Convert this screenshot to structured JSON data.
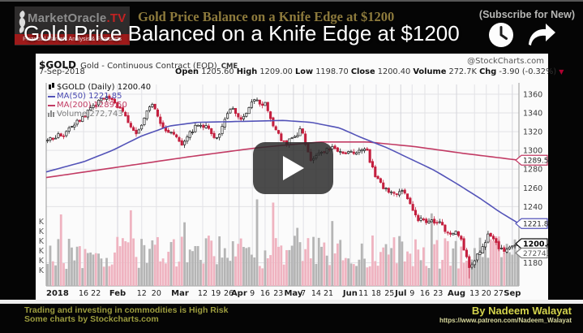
{
  "video": {
    "overlay_title": "Gold Price Balanced on a Knife Edge at $1200",
    "top_title": "Gold Price Balance on a Knife Edge at $1200",
    "subscribe_note": "(Subscribe for New)",
    "logo": {
      "name": "MarketOracle",
      "tld": ".TV",
      "tagline": "Financial Markets Analysis & Forecasts"
    },
    "footer": {
      "left_line1": "Trading and investing in  commodities is High Risk",
      "left_line2": "Some charts by Stockcharts.com",
      "right_byline": "By Nadeem Walayat",
      "right_url": "https://www.patreon.com/Nadeem_Walayat"
    }
  },
  "chart": {
    "symbol": "$GOLD",
    "description": "Gold - Continuous Contract (EOD)",
    "exchange": "CME",
    "source": "@StockCharts.com",
    "date": "7-Sep-2018",
    "quote": {
      "open_label": "Open",
      "open": "1205.60",
      "high_label": "High",
      "high": "1209.00",
      "low_label": "Low",
      "low": "1198.70",
      "close_label": "Close",
      "close": "1200.40",
      "volume_label": "Volume",
      "volume": "272.7K",
      "chg_label": "Chg",
      "chg": "-3.90 (-0.32%)"
    },
    "legend": {
      "price": "$GOLD (Daily) 1200.40",
      "ma50": "MA(50) 1221.85",
      "ma200": "MA(200) 1289.50",
      "volume": "Volume 272,743"
    }
  },
  "chart_data": {
    "type": "candlestick",
    "symbol": "$GOLD (Daily)",
    "timeframe": "Jan 2018 - 7 Sep 2018",
    "ohlc_today": {
      "open": 1205.6,
      "high": 1209.0,
      "low": 1198.7,
      "close": 1200.4,
      "volume_k": 272.7,
      "change": -3.9,
      "change_pct": -0.32
    },
    "ylim": [
      1160,
      1370
    ],
    "y_ticks": [
      1360,
      1340,
      1320,
      1300,
      1280,
      1260,
      1240,
      1180
    ],
    "price_tags": [
      {
        "value": "1289.50",
        "series": "MA(200)",
        "price": 1289.5,
        "color": "#c23b64"
      },
      {
        "value": "1221.85",
        "series": "MA(50)",
        "price": 1221.85,
        "color": "#5353b8"
      },
      {
        "value": "1200.40",
        "series": "close",
        "price": 1200.4,
        "color": "#111111"
      },
      {
        "value": "272743",
        "series": "volume",
        "color": "#808080"
      }
    ],
    "volume_axis_labels": [
      "K",
      "K",
      "K",
      "K",
      "K",
      "K"
    ],
    "x_ticks": [
      [
        "2018",
        0.0,
        1
      ],
      [
        "16",
        0.079,
        0
      ],
      [
        "22",
        0.105,
        0
      ],
      [
        "Feb",
        0.151,
        1
      ],
      [
        "12",
        0.202,
        0
      ],
      [
        "20",
        0.233,
        0
      ],
      [
        "Mar",
        0.283,
        1
      ],
      [
        "12",
        0.331,
        0
      ],
      [
        "19",
        0.359,
        0
      ],
      [
        "26",
        0.386,
        0
      ],
      [
        "Apr",
        0.408,
        1
      ],
      [
        "9",
        0.436,
        0
      ],
      [
        "16",
        0.463,
        0
      ],
      [
        "23",
        0.491,
        0
      ],
      [
        "May",
        0.523,
        1
      ],
      [
        "7",
        0.544,
        0
      ],
      [
        "14",
        0.571,
        0
      ],
      [
        "21",
        0.597,
        0
      ],
      [
        "Jun",
        0.643,
        1
      ],
      [
        "11",
        0.671,
        0
      ],
      [
        "18",
        0.698,
        0
      ],
      [
        "25",
        0.726,
        0
      ],
      [
        "Jul",
        0.75,
        1
      ],
      [
        "9",
        0.774,
        0
      ],
      [
        "16",
        0.801,
        0
      ],
      [
        "23",
        0.829,
        0
      ],
      [
        "Aug",
        0.868,
        1
      ],
      [
        "13",
        0.906,
        0
      ],
      [
        "20",
        0.931,
        0
      ],
      [
        "27",
        0.957,
        0
      ],
      [
        "Sep",
        0.986,
        1
      ]
    ],
    "series": [
      {
        "name": "$GOLD close path",
        "type": "candles",
        "last": 1200.4,
        "anchors": [
          [
            0.0,
            1312
          ],
          [
            0.036,
            1318
          ],
          [
            0.122,
            1358
          ],
          [
            0.156,
            1345
          ],
          [
            0.19,
            1316
          ],
          [
            0.22,
            1352
          ],
          [
            0.24,
            1328
          ],
          [
            0.288,
            1307
          ],
          [
            0.314,
            1326
          ],
          [
            0.34,
            1324
          ],
          [
            0.362,
            1311
          ],
          [
            0.388,
            1346
          ],
          [
            0.413,
            1333
          ],
          [
            0.439,
            1353
          ],
          [
            0.465,
            1349
          ],
          [
            0.482,
            1324
          ],
          [
            0.506,
            1306
          ],
          [
            0.54,
            1322
          ],
          [
            0.559,
            1290
          ],
          [
            0.597,
            1303
          ],
          [
            0.652,
            1296
          ],
          [
            0.678,
            1302
          ],
          [
            0.695,
            1274
          ],
          [
            0.722,
            1256
          ],
          [
            0.743,
            1253
          ],
          [
            0.755,
            1258
          ],
          [
            0.786,
            1227
          ],
          [
            0.808,
            1224
          ],
          [
            0.837,
            1223
          ],
          [
            0.849,
            1213
          ],
          [
            0.877,
            1211
          ],
          [
            0.897,
            1174
          ],
          [
            0.901,
            1178
          ],
          [
            0.926,
            1196
          ],
          [
            0.94,
            1212
          ],
          [
            0.952,
            1200
          ],
          [
            0.974,
            1192
          ],
          [
            1.0,
            1200.4
          ]
        ]
      },
      {
        "name": "MA(50)",
        "type": "line",
        "last": 1221.85,
        "anchors": [
          [
            0.0,
            1277
          ],
          [
            0.08,
            1288
          ],
          [
            0.14,
            1300
          ],
          [
            0.2,
            1315
          ],
          [
            0.26,
            1326
          ],
          [
            0.32,
            1330
          ],
          [
            0.42,
            1331
          ],
          [
            0.5,
            1332
          ],
          [
            0.56,
            1330
          ],
          [
            0.62,
            1324
          ],
          [
            0.67,
            1313
          ],
          [
            0.72,
            1303
          ],
          [
            0.77,
            1291
          ],
          [
            0.82,
            1279
          ],
          [
            0.87,
            1264
          ],
          [
            0.92,
            1248
          ],
          [
            0.96,
            1234
          ],
          [
            1.0,
            1221.85
          ]
        ]
      },
      {
        "name": "MA(200)",
        "type": "line",
        "last": 1289.5,
        "anchors": [
          [
            0.0,
            1271
          ],
          [
            0.15,
            1282
          ],
          [
            0.3,
            1293
          ],
          [
            0.45,
            1303
          ],
          [
            0.58,
            1309
          ],
          [
            0.68,
            1309
          ],
          [
            0.78,
            1304
          ],
          [
            0.88,
            1297
          ],
          [
            1.0,
            1289.5
          ]
        ]
      },
      {
        "name": "Volume",
        "type": "bars",
        "last": 272743,
        "axis_unit": "K"
      }
    ],
    "render": {
      "num_candles": 176,
      "seed": 20180907,
      "colors": {
        "up": "#1a1a1a",
        "down": "#c41f3e",
        "ma50": "#5353b8",
        "ma200": "#c23b64",
        "vol_up": "#b5b5b5",
        "vol_down": "#efb3c0",
        "grid": "#e2e2e6",
        "grid_month": "#d4d4da",
        "axis": "#999999",
        "label": "#3a3a3a"
      }
    }
  }
}
